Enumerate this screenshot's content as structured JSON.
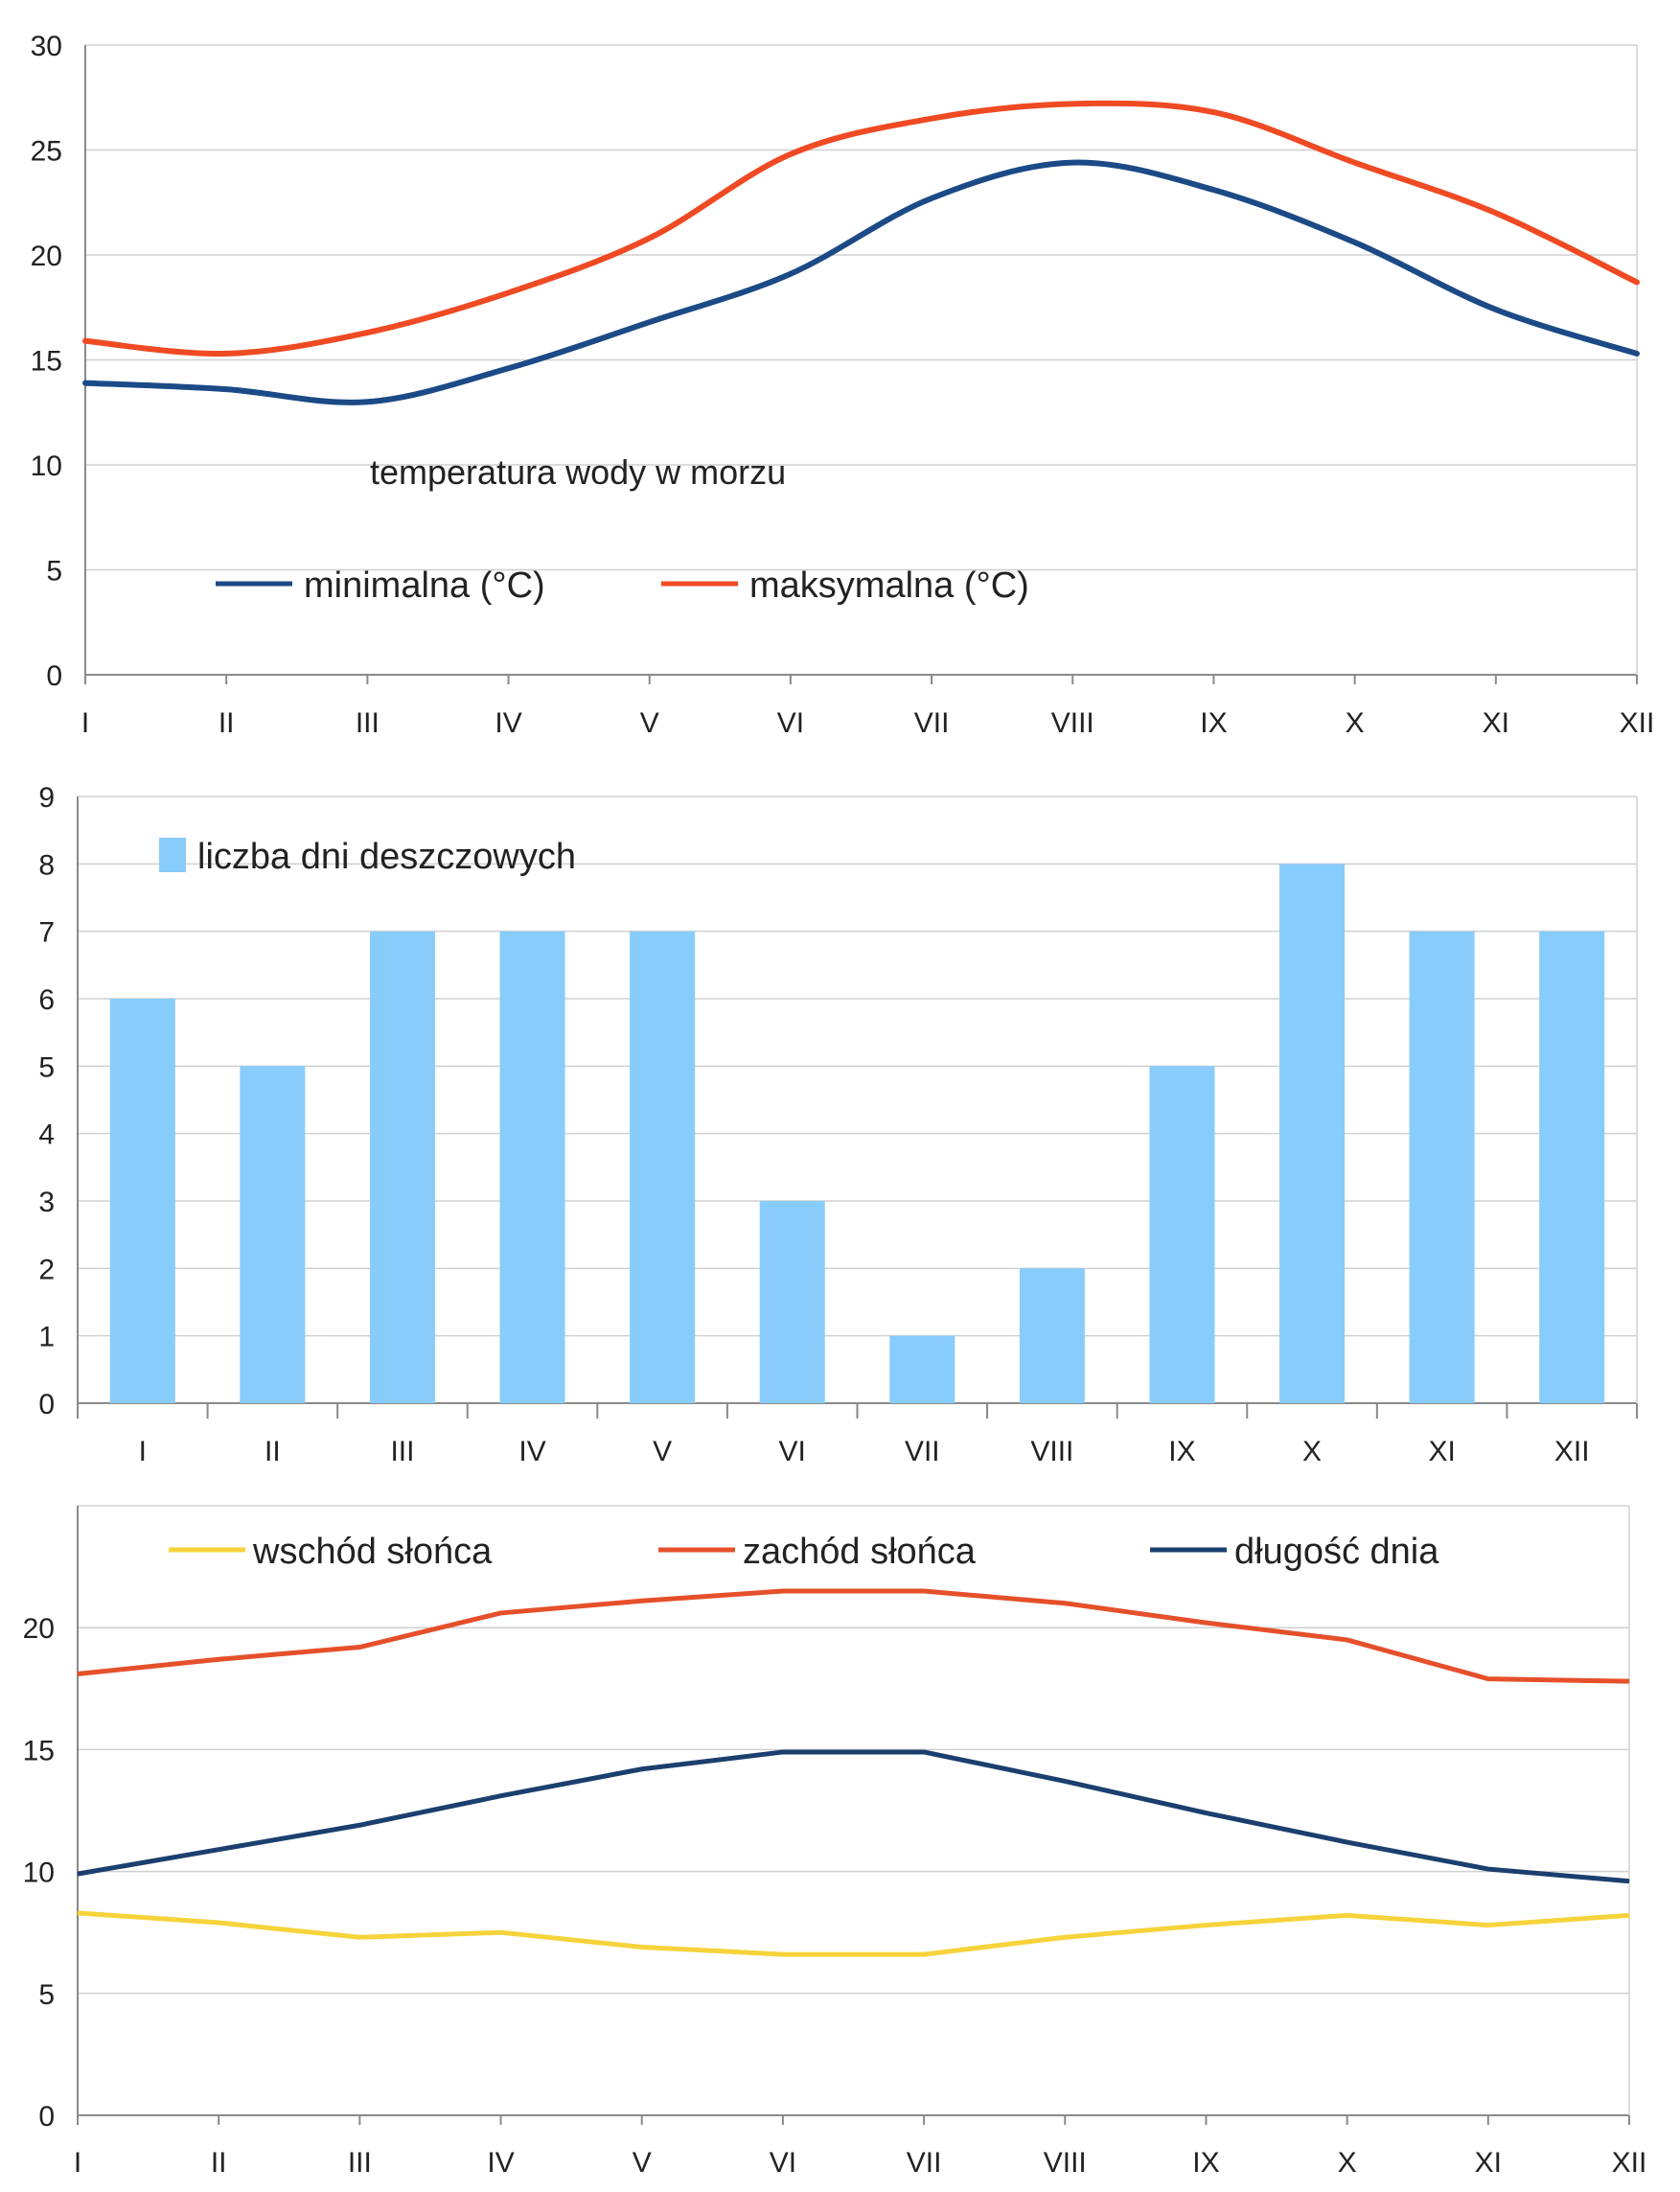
{
  "chart_data": [
    {
      "type": "line",
      "annotation": "temperatura wody w morzu",
      "categories": [
        "I",
        "II",
        "III",
        "IV",
        "V",
        "VI",
        "VII",
        "VIII",
        "IX",
        "X",
        "XI",
        "XII"
      ],
      "yticks": [
        "0",
        "5",
        "10",
        "15",
        "20",
        "25",
        "30"
      ],
      "ylim": [
        0,
        30
      ],
      "grid": true,
      "legend_position": "bottom-left",
      "series": [
        {
          "name": "minimalna  (°C)",
          "color": "#1b4a86",
          "values": [
            13.9,
            13.6,
            13.0,
            14.6,
            16.8,
            19.1,
            22.7,
            24.4,
            23.1,
            20.6,
            17.4,
            15.3
          ]
        },
        {
          "name": "maksymalna (°C)",
          "color": "#ef4a23",
          "values": [
            15.9,
            15.3,
            16.3,
            18.2,
            20.8,
            24.8,
            26.5,
            27.2,
            26.8,
            24.4,
            22.0,
            18.7
          ]
        }
      ]
    },
    {
      "type": "bar",
      "categories": [
        "I",
        "II",
        "III",
        "IV",
        "V",
        "VI",
        "VII",
        "VIII",
        "IX",
        "X",
        "XI",
        "XII"
      ],
      "yticks": [
        "0",
        "1",
        "2",
        "3",
        "4",
        "5",
        "6",
        "7",
        "8",
        "9"
      ],
      "ylim": [
        0,
        9
      ],
      "grid": true,
      "legend_position": "top-left",
      "series": [
        {
          "name": "liczba dni deszczowych",
          "color": "#88ccfb",
          "values": [
            6,
            5,
            7,
            7,
            7,
            3,
            1,
            2,
            5,
            8,
            7,
            7
          ]
        }
      ]
    },
    {
      "type": "line",
      "categories": [
        "I",
        "II",
        "III",
        "IV",
        "V",
        "VI",
        "VII",
        "VIII",
        "IX",
        "X",
        "XI",
        "XII"
      ],
      "yticks": [
        "0",
        "5",
        "10",
        "15",
        "20"
      ],
      "ylim": [
        0,
        25
      ],
      "grid": true,
      "legend_position": "top",
      "series": [
        {
          "name": "wschód słońca",
          "color": "#f6d33b",
          "values": [
            8.3,
            7.9,
            7.3,
            7.5,
            6.9,
            6.6,
            6.6,
            7.3,
            7.8,
            8.2,
            7.8,
            8.2
          ]
        },
        {
          "name": "zachód słońca",
          "color": "#e5502a",
          "values": [
            18.1,
            18.7,
            19.2,
            20.6,
            21.1,
            21.5,
            21.5,
            21.0,
            20.2,
            19.5,
            17.9,
            17.8
          ]
        },
        {
          "name": "długość dnia",
          "color": "#1b3f6e",
          "values": [
            9.9,
            10.9,
            11.9,
            13.1,
            14.2,
            14.9,
            14.9,
            13.7,
            12.4,
            11.2,
            10.1,
            9.6
          ]
        }
      ]
    }
  ]
}
